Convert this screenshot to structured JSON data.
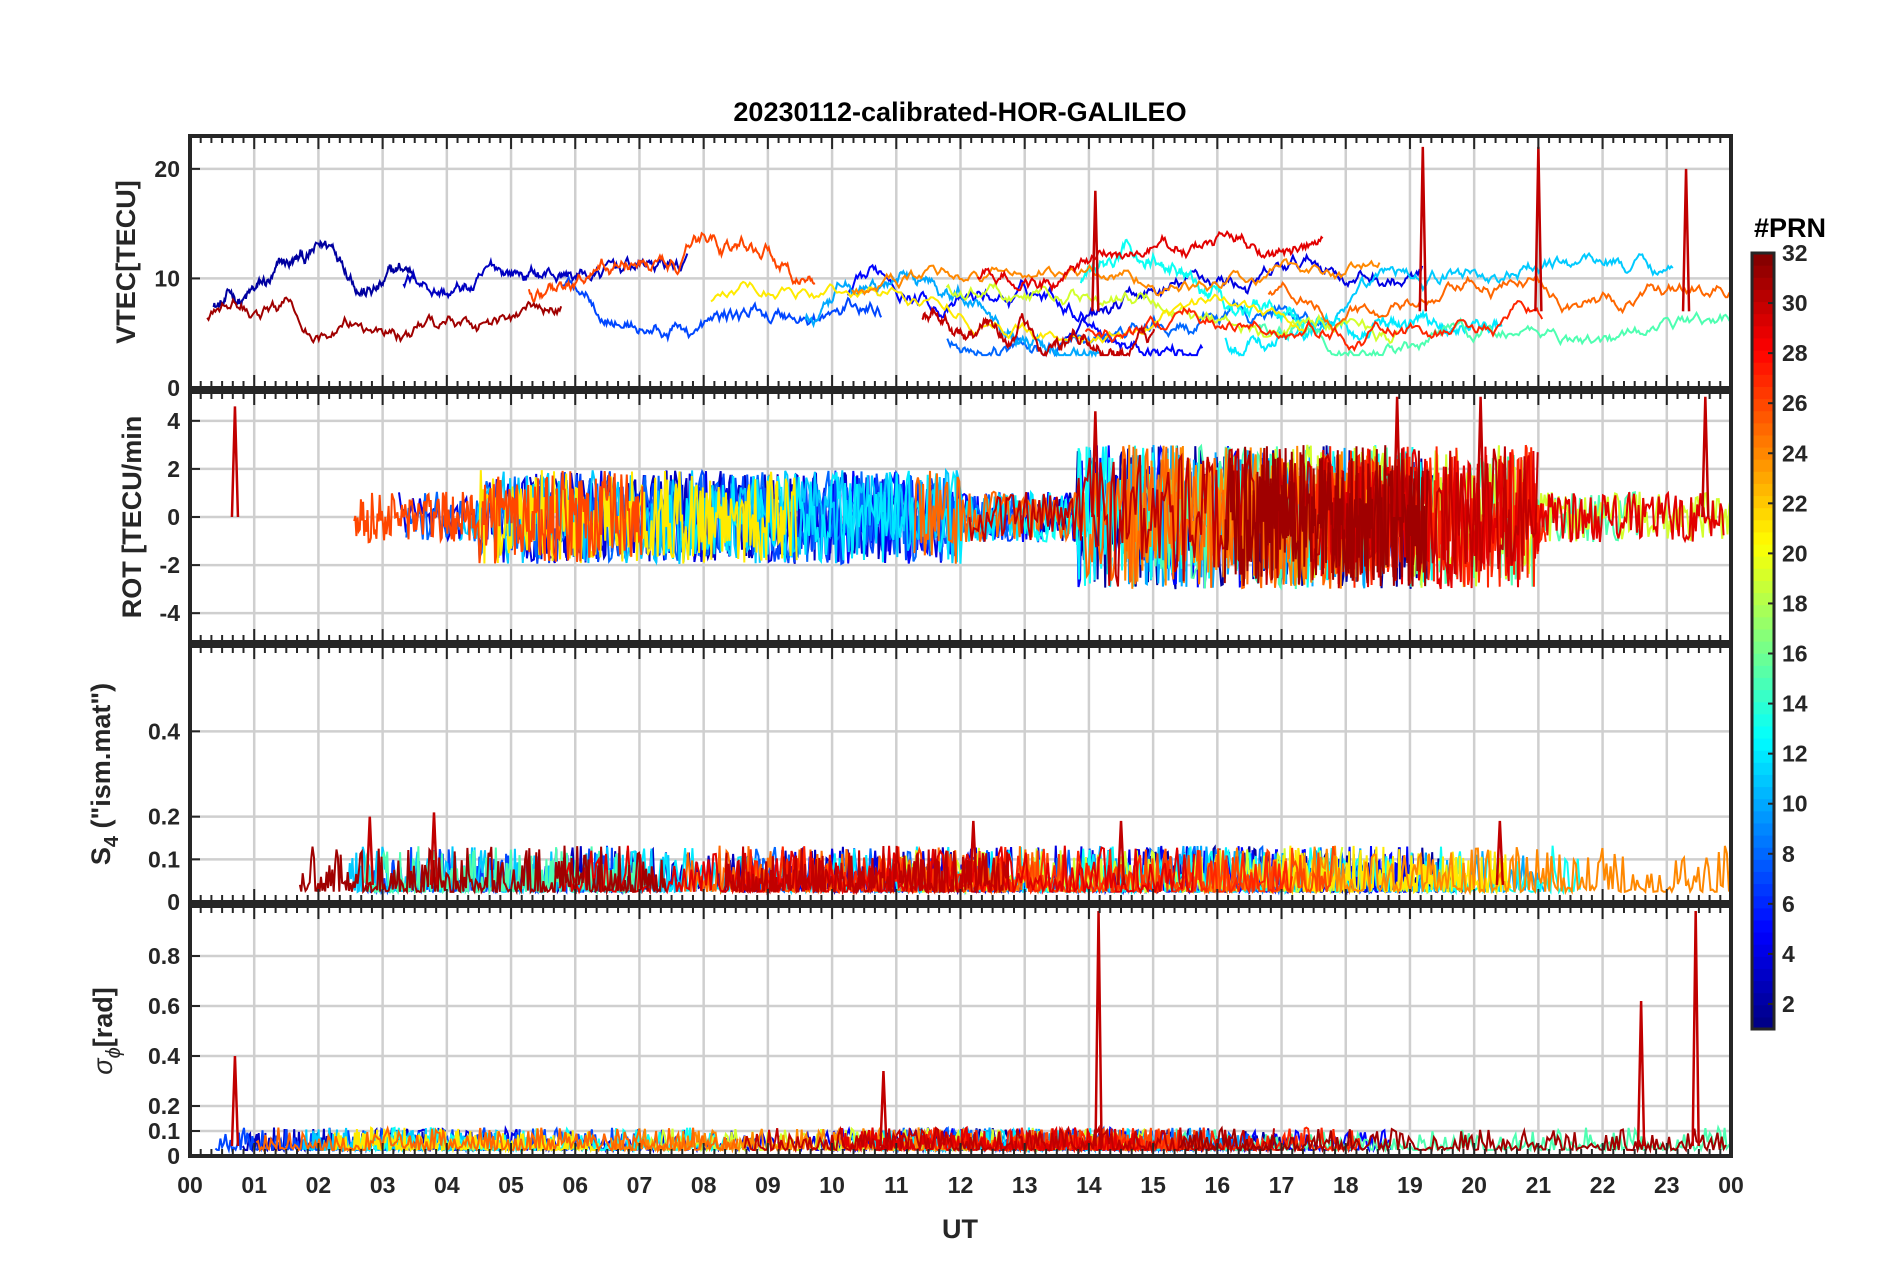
{
  "chart_data": {
    "type": "line",
    "title": "20230112-calibrated-HOR-GALILEO",
    "xlabel": "UT",
    "x_ticks": [
      "00",
      "01",
      "02",
      "03",
      "04",
      "05",
      "06",
      "07",
      "08",
      "09",
      "10",
      "11",
      "12",
      "13",
      "14",
      "15",
      "16",
      "17",
      "18",
      "19",
      "20",
      "21",
      "22",
      "23",
      "00"
    ],
    "xlim": [
      0,
      24
    ],
    "grid": true,
    "panels": [
      {
        "id": "vtec",
        "ylabel": "VTEC[TECU]",
        "ylim": [
          0,
          23
        ],
        "yticks": [
          0,
          10,
          20
        ],
        "ytick_labels": [
          "0",
          "10",
          "20"
        ],
        "baseline": 7,
        "spread": 6,
        "spikes": [
          [
            14.1,
            18
          ],
          [
            19.2,
            22
          ],
          [
            21.0,
            22
          ],
          [
            23.3,
            20
          ]
        ]
      },
      {
        "id": "rot",
        "ylabel": "ROT [TECU/min",
        "ylim": [
          -5.2,
          5.2
        ],
        "yticks": [
          -4,
          -2,
          0,
          2,
          4
        ],
        "ytick_labels": [
          "-4",
          "-2",
          "0",
          "2",
          "4"
        ],
        "baseline": 0,
        "spread": 1.5,
        "spikes": [
          [
            0.7,
            4.6
          ],
          [
            14.1,
            4.4
          ],
          [
            18.8,
            5.0
          ],
          [
            20.1,
            5.0
          ],
          [
            23.6,
            5.0
          ]
        ]
      },
      {
        "id": "s4",
        "ylabel": "S",
        "ylabel_sub": "4",
        "ylabel_rest": " (\"ism.mat\")",
        "ylim": [
          0,
          0.6
        ],
        "yticks": [
          0,
          0.1,
          0.2,
          0.4
        ],
        "ytick_labels": [
          "0",
          "0.1",
          "0.2",
          "0.4"
        ],
        "baseline": 0.04,
        "spread": 0.06,
        "spikes": [
          [
            3.8,
            0.21
          ],
          [
            2.8,
            0.2
          ],
          [
            12.2,
            0.19
          ],
          [
            14.5,
            0.19
          ],
          [
            20.4,
            0.19
          ]
        ]
      },
      {
        "id": "sigma",
        "ylabel": "σ",
        "ylabel_sub": "ϕ",
        "ylabel_rest": "[rad]",
        "ylim": [
          0,
          1.0
        ],
        "yticks": [
          0,
          0.1,
          0.2,
          0.4,
          0.6,
          0.8
        ],
        "ytick_labels": [
          "0",
          "0.1",
          "0.2",
          "0.4",
          "0.6",
          "0.8"
        ],
        "baseline": 0.04,
        "spread": 0.05,
        "spikes": [
          [
            0.7,
            0.4
          ],
          [
            14.15,
            0.98
          ],
          [
            22.6,
            0.62
          ],
          [
            23.45,
            0.98
          ],
          [
            10.8,
            0.34
          ]
        ]
      }
    ],
    "colorbar": {
      "title": "#PRN",
      "range": [
        1,
        32
      ],
      "ticks": [
        2,
        4,
        6,
        8,
        10,
        12,
        14,
        16,
        18,
        20,
        22,
        24,
        26,
        28,
        30,
        32
      ],
      "tick_labels": [
        "2",
        "4",
        "6",
        "8",
        "10",
        "12",
        "14",
        "16",
        "18",
        "20",
        "22",
        "24",
        "26",
        "28",
        "30",
        "32"
      ],
      "colormap": "jet"
    },
    "series_prns": [
      2,
      3,
      4,
      5,
      7,
      8,
      10,
      11,
      12,
      13,
      15,
      19,
      21,
      24,
      25,
      26,
      27,
      29,
      30,
      31
    ]
  }
}
